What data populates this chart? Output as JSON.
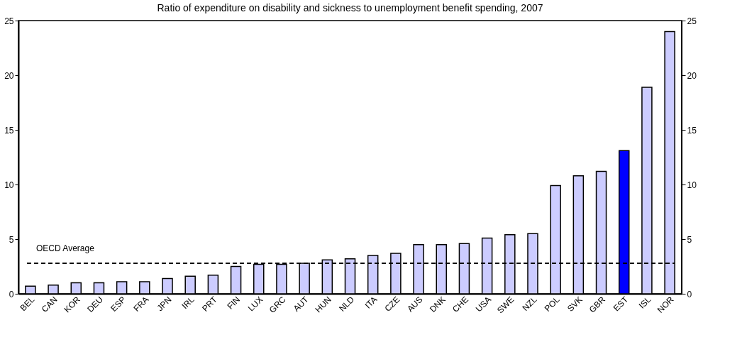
{
  "chart_data": {
    "type": "bar",
    "title": "Ratio of expenditure on disability and sickness to unemployment benefit spending, 2007",
    "categories": [
      "BEL",
      "CAN",
      "KOR",
      "DEU",
      "ESP",
      "FRA",
      "JPN",
      "IRL",
      "PRT",
      "FIN",
      "LUX",
      "GRC",
      "AUT",
      "HUN",
      "NLD",
      "ITA",
      "CZE",
      "AUS",
      "DNK",
      "CHE",
      "USA",
      "SWE",
      "NZL",
      "POL",
      "SVK",
      "GBR",
      "EST",
      "ISL",
      "NOR"
    ],
    "values": [
      0.7,
      0.8,
      1.0,
      1.0,
      1.1,
      1.1,
      1.4,
      1.6,
      1.7,
      2.5,
      2.7,
      2.7,
      2.8,
      3.1,
      3.2,
      3.5,
      3.7,
      4.5,
      4.5,
      4.6,
      5.1,
      5.4,
      5.5,
      9.9,
      10.8,
      11.2,
      13.1,
      18.9,
      24.0
    ],
    "colors": [
      "#ccccff",
      "#ccccff",
      "#ccccff",
      "#ccccff",
      "#ccccff",
      "#ccccff",
      "#ccccff",
      "#ccccff",
      "#ccccff",
      "#ccccff",
      "#ccccff",
      "#ccccff",
      "#ccccff",
      "#ccccff",
      "#ccccff",
      "#ccccff",
      "#ccccff",
      "#ccccff",
      "#ccccff",
      "#ccccff",
      "#ccccff",
      "#ccccff",
      "#ccccff",
      "#ccccff",
      "#ccccff",
      "#ccccff",
      "#0000ff",
      "#ccccff",
      "#ccccff"
    ],
    "ylim": [
      0,
      25
    ],
    "yticks": [
      0,
      5,
      10,
      15,
      20,
      25
    ],
    "y2lim": [
      0,
      25
    ],
    "y2ticks": [
      0,
      5,
      10,
      15,
      20,
      25
    ],
    "ref_lines": [
      {
        "axis": "y",
        "value": 2.8,
        "label": "OECD Average",
        "color": "#000000",
        "line_style": "dashed"
      }
    ],
    "grid": false
  }
}
